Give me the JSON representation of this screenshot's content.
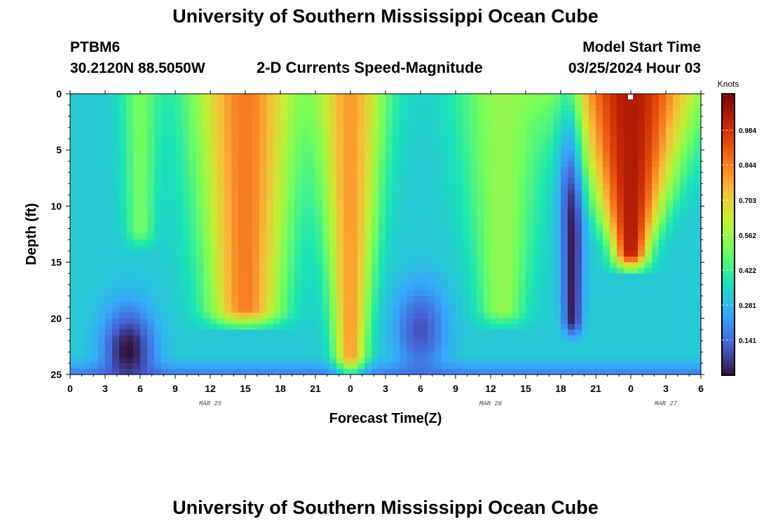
{
  "header": {
    "title": "University of Southern Mississippi Ocean Cube",
    "station_id": "PTBM6",
    "station_coords": "30.2120N  88.5050W",
    "subtitle": "2-D Currents Speed-Magnitude",
    "model_start_label": "Model Start Time",
    "model_start_value": "03/25/2024 Hour 03"
  },
  "footer": {
    "title": "University of Southern Mississippi Ocean Cube"
  },
  "chart_data": {
    "type": "heatmap",
    "title": "2-D Currents Speed-Magnitude",
    "xlabel": "Forecast Time(Z)",
    "ylabel": "Depth (ft)",
    "x_range_hours": [
      0,
      54
    ],
    "y_range_ft": [
      0,
      25
    ],
    "x_ticks": [
      {
        "hour": 0,
        "label": "0"
      },
      {
        "hour": 3,
        "label": "3"
      },
      {
        "hour": 6,
        "label": "6"
      },
      {
        "hour": 9,
        "label": "9"
      },
      {
        "hour": 12,
        "label": "12"
      },
      {
        "hour": 15,
        "label": "15"
      },
      {
        "hour": 18,
        "label": "18"
      },
      {
        "hour": 21,
        "label": "21"
      },
      {
        "hour": 24,
        "label": "0"
      },
      {
        "hour": 27,
        "label": "3"
      },
      {
        "hour": 30,
        "label": "6"
      },
      {
        "hour": 33,
        "label": "9"
      },
      {
        "hour": 36,
        "label": "12"
      },
      {
        "hour": 39,
        "label": "15"
      },
      {
        "hour": 42,
        "label": "18"
      },
      {
        "hour": 45,
        "label": "21"
      },
      {
        "hour": 48,
        "label": "0"
      },
      {
        "hour": 51,
        "label": "3"
      },
      {
        "hour": 54,
        "label": "6"
      }
    ],
    "y_ticks": [
      {
        "depth": 0,
        "label": "0"
      },
      {
        "depth": 5,
        "label": "5"
      },
      {
        "depth": 10,
        "label": "10"
      },
      {
        "depth": 15,
        "label": "15"
      },
      {
        "depth": 20,
        "label": "20"
      },
      {
        "depth": 25,
        "label": "25"
      }
    ],
    "date_labels": [
      {
        "hour": 12,
        "label": "MAR 25"
      },
      {
        "hour": 36,
        "label": "MAR 26"
      },
      {
        "hour": 51,
        "label": "MAR 27"
      }
    ],
    "colorbar": {
      "units": "Knots",
      "min": 0.0,
      "max": 1.13,
      "ticks": [
        0.141,
        0.281,
        0.422,
        0.562,
        0.703,
        0.844,
        0.984
      ],
      "colors": [
        "#30123b",
        "#4662d7",
        "#36aaf9",
        "#1ae4b6",
        "#72fe5e",
        "#c7ef34",
        "#fbb938",
        "#f56918",
        "#c92903",
        "#7a0403"
      ]
    },
    "features": [
      {
        "name": "ebb-core-1",
        "center_hour": 6,
        "half_width_surface": 1.6,
        "half_width_bottom": 1.2,
        "depth_extent_ft": 12,
        "peak_knots": 0.5
      },
      {
        "name": "flood-core-1",
        "center_hour": 15,
        "half_width_surface": 4.5,
        "half_width_bottom": 3.0,
        "depth_extent_ft": 19,
        "peak_knots": 0.85
      },
      {
        "name": "flood-core-2",
        "center_hour": 24,
        "half_width_surface": 3.0,
        "half_width_bottom": 1.2,
        "depth_extent_ft": 25,
        "peak_knots": 0.8
      },
      {
        "name": "ebb-core-2",
        "center_hour": 37,
        "half_width_surface": 4.0,
        "half_width_bottom": 2.0,
        "depth_extent_ft": 19,
        "peak_knots": 0.55
      },
      {
        "name": "slack-low-1",
        "center_hour": 43,
        "half_width_surface": 1.2,
        "half_width_bottom": 0.8,
        "depth_extent_ft": 20,
        "peak_knots": 0.02
      },
      {
        "name": "flood-core-3",
        "center_hour": 48,
        "half_width_surface": 5.5,
        "half_width_bottom": 1.5,
        "depth_extent_ft": 14,
        "peak_knots": 1.05
      }
    ],
    "minima": [
      {
        "name": "slack-low-bottom-1",
        "center_hour": 5,
        "center_depth_ft": 23,
        "peak_knots": 0.0
      },
      {
        "name": "slack-low-bottom-2",
        "center_hour": 30,
        "center_depth_ft": 21,
        "peak_knots": 0.1
      }
    ]
  }
}
